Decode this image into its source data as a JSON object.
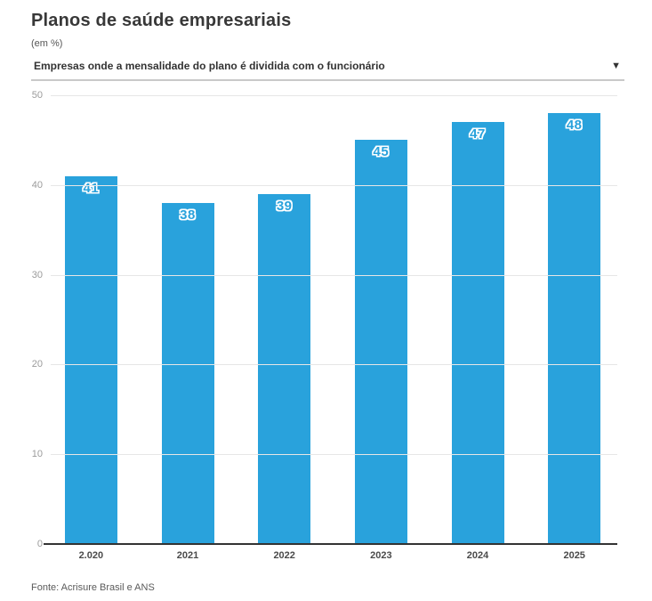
{
  "header": {
    "title": "Planos de saúde empresariais",
    "subtitle": "(em %)"
  },
  "filter": {
    "label": "Empresas onde a mensalidade do plano é dividida com o funcionário",
    "caret_icon": "▼"
  },
  "chart_data": {
    "type": "bar",
    "categories": [
      "2.020",
      "2021",
      "2022",
      "2023",
      "2024",
      "2025"
    ],
    "values": [
      41,
      38,
      39,
      45,
      47,
      48
    ],
    "title": "Planos de saúde empresariais",
    "xlabel": "",
    "ylabel": "(em %)",
    "ylim": [
      0,
      50
    ],
    "yticks": [
      0,
      10,
      20,
      30,
      40,
      50
    ],
    "grid": true,
    "legend": false,
    "bar_color": "#29a2dc",
    "value_label_color": "#29a2dc",
    "value_label_outline": "#ffffff"
  },
  "footer": {
    "source": "Fonte: Acrisure Brasil e ANS"
  },
  "colors": {
    "accent": "#29a2dc",
    "title_text": "#383838",
    "tick_text": "#9b9b9b",
    "xtick_text": "#4a4a4a",
    "gridline": "#e6e6e6",
    "axis": "#333333",
    "dropdown_border": "#c9c9c9"
  }
}
